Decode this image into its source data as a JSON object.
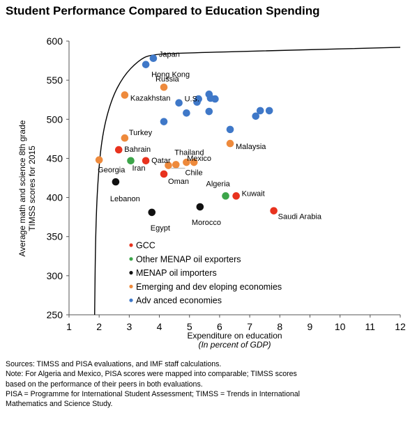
{
  "title": "Student Performance Compared to Education Spending",
  "chart_data": {
    "type": "scatter",
    "xlabel": "Expenditure on education",
    "xlabel_sub": "(In percent of GDP)",
    "ylabel_line1": "Average math and science 8th grade",
    "ylabel_line2": "TIMSS scores for 2015",
    "xlim": [
      1,
      12
    ],
    "ylim": [
      250,
      600
    ],
    "x_ticks": [
      1,
      2,
      3,
      4,
      5,
      6,
      7,
      8,
      9,
      10,
      11,
      12
    ],
    "y_ticks": [
      250,
      300,
      350,
      400,
      450,
      500,
      550,
      600
    ],
    "grid": false,
    "legend_position": "lower-center",
    "colors": {
      "GCC": "#e8321e",
      "Other MENAP oil exporters": "#3ca54a",
      "MENAP oil importers": "#111111",
      "Emerging and developing economies": "#ee8a3c",
      "Advanced economies": "#3f78c8",
      "frontier": "#000000"
    },
    "series": [
      {
        "name": "GCC",
        "points": [
          {
            "x": 2.65,
            "y": 461,
            "label": "Bahrain"
          },
          {
            "x": 3.55,
            "y": 447,
            "label": "Qatar"
          },
          {
            "x": 4.15,
            "y": 430,
            "label": "Oman"
          },
          {
            "x": 6.55,
            "y": 402,
            "label": "Kuwait"
          },
          {
            "x": 7.8,
            "y": 383,
            "label": "Saudi  Arabia"
          }
        ]
      },
      {
        "name": "Other MENAP oil exporters",
        "points": [
          {
            "x": 3.05,
            "y": 447,
            "label": "Iran"
          },
          {
            "x": 6.2,
            "y": 402,
            "label": "Algeria"
          }
        ]
      },
      {
        "name": "MENAP oil importers",
        "points": [
          {
            "x": 2.55,
            "y": 420,
            "label": "Lebanon"
          },
          {
            "x": 3.75,
            "y": 381,
            "label": "Egypt"
          },
          {
            "x": 5.35,
            "y": 388,
            "label": "Morocco"
          }
        ]
      },
      {
        "name": "Emerging and developing economies",
        "points": [
          {
            "x": 2.0,
            "y": 448,
            "label": "Georgia"
          },
          {
            "x": 2.85,
            "y": 531,
            "label": "Kazakhstan"
          },
          {
            "x": 2.85,
            "y": 476,
            "label": "Turkey"
          },
          {
            "x": 4.15,
            "y": 541,
            "label": "Russia"
          },
          {
            "x": 4.55,
            "y": 442,
            "label": "Thailand"
          },
          {
            "x": 4.9,
            "y": 445,
            "label": ""
          },
          {
            "x": 5.15,
            "y": 445,
            "label": "Mexico"
          },
          {
            "x": 4.3,
            "y": 441,
            "label": "Chile"
          },
          {
            "x": 6.35,
            "y": 469,
            "label": "Malaysia"
          }
        ]
      },
      {
        "name": "Advanced economies",
        "points": [
          {
            "x": 3.8,
            "y": 578,
            "label": "Japan"
          },
          {
            "x": 3.55,
            "y": 570,
            "label": "Hong Kong"
          },
          {
            "x": 4.65,
            "y": 521,
            "label": "U.S."
          },
          {
            "x": 4.15,
            "y": 497,
            "label": ""
          },
          {
            "x": 4.9,
            "y": 508,
            "label": ""
          },
          {
            "x": 5.25,
            "y": 522,
            "label": ""
          },
          {
            "x": 5.3,
            "y": 526,
            "label": ""
          },
          {
            "x": 5.65,
            "y": 532,
            "label": ""
          },
          {
            "x": 5.7,
            "y": 527,
            "label": ""
          },
          {
            "x": 5.85,
            "y": 526,
            "label": ""
          },
          {
            "x": 5.65,
            "y": 510,
            "label": ""
          },
          {
            "x": 6.35,
            "y": 487,
            "label": ""
          },
          {
            "x": 7.2,
            "y": 504,
            "label": ""
          },
          {
            "x": 7.35,
            "y": 511,
            "label": ""
          },
          {
            "x": 7.65,
            "y": 511,
            "label": ""
          }
        ]
      }
    ],
    "frontier_curve": [
      {
        "x": 1.85,
        "y": 250
      },
      {
        "x": 1.88,
        "y": 350
      },
      {
        "x": 1.95,
        "y": 420
      },
      {
        "x": 2.1,
        "y": 480
      },
      {
        "x": 2.4,
        "y": 525
      },
      {
        "x": 2.8,
        "y": 555
      },
      {
        "x": 3.3,
        "y": 575
      },
      {
        "x": 3.7,
        "y": 583
      },
      {
        "x": 5,
        "y": 585
      },
      {
        "x": 8,
        "y": 588
      },
      {
        "x": 12,
        "y": 592
      }
    ],
    "legend": [
      "GCC",
      "Other MENAP oil exporters",
      "MENAP oil importers",
      "Emerging and dev eloping economies",
      "Adv anced economies"
    ]
  },
  "notes": {
    "sources": "Sources: TIMSS and PISA evaluations, and IMF staff calculations.",
    "note_line1": "Note: For Algeria and Mexico, PISA scores were mapped into comparable; TIMSS scores",
    "note_line2": "based on the performance of their peers in both evaluations.",
    "pisa_line1": "PISA = Programme for International Student Assessment; TIMSS = Trends in International",
    "pisa_line2": "Mathematics and Science Study."
  }
}
